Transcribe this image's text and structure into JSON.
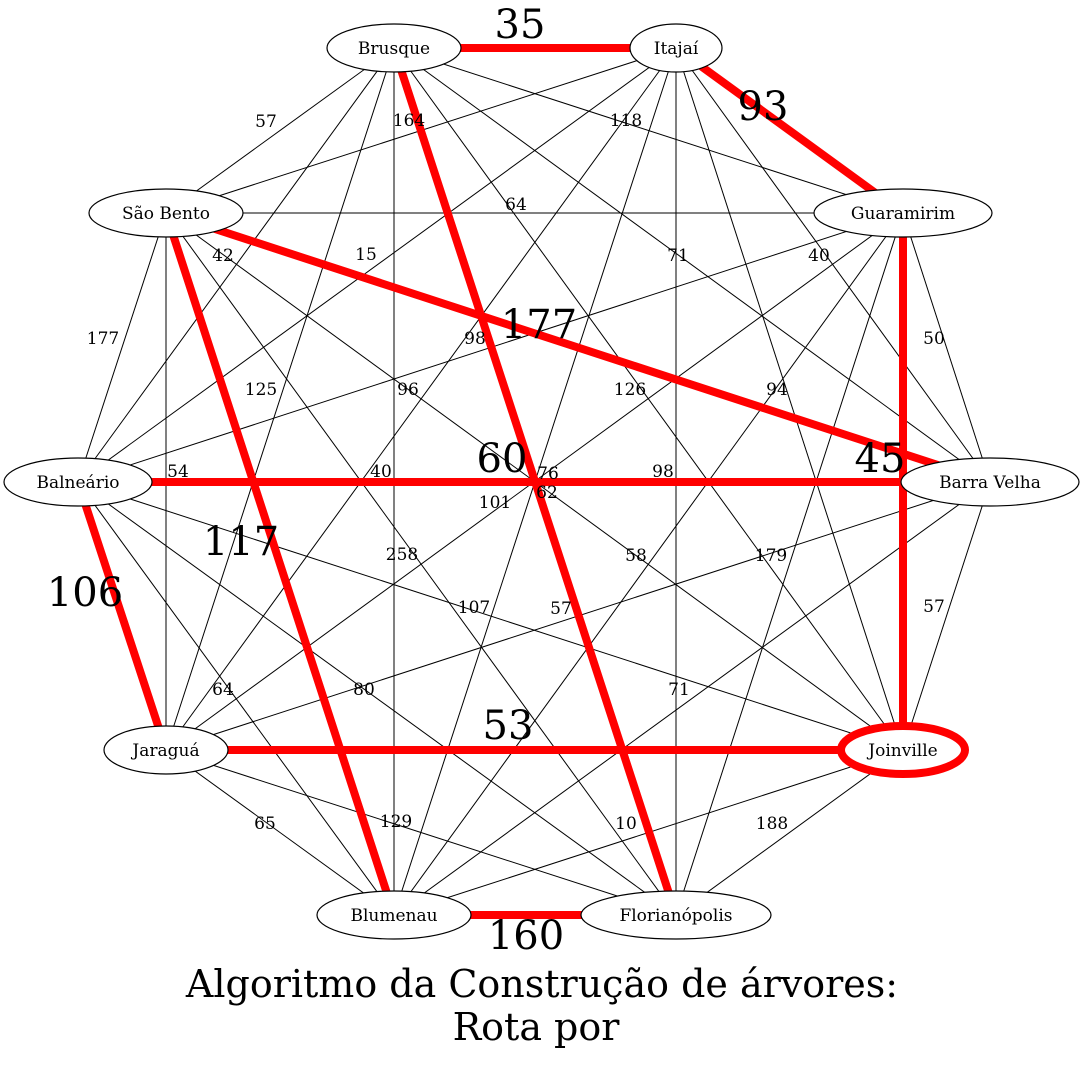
{
  "title": {
    "line1": "Algoritmo da Construção de árvores:",
    "line2": "Rota por"
  },
  "highlight_color": "#ff0000",
  "edge_color": "#000000",
  "nodes": [
    {
      "id": "brusque",
      "label": "Brusque",
      "highlighted": false
    },
    {
      "id": "itajai",
      "label": "Itajaí",
      "highlighted": false
    },
    {
      "id": "sao-bento",
      "label": "São Bento",
      "highlighted": false
    },
    {
      "id": "guaramirim",
      "label": "Guaramirim",
      "highlighted": false
    },
    {
      "id": "balneario",
      "label": "Balneário",
      "highlighted": false
    },
    {
      "id": "barra-velha",
      "label": "Barra Velha",
      "highlighted": false
    },
    {
      "id": "jaragua",
      "label": "Jaraguá",
      "highlighted": false
    },
    {
      "id": "joinville",
      "label": "Joinville",
      "highlighted": true
    },
    {
      "id": "blumenau",
      "label": "Blumenau",
      "highlighted": false
    },
    {
      "id": "florianopolis",
      "label": "Florianópolis",
      "highlighted": false
    }
  ],
  "edges": [
    {
      "from": "brusque",
      "to": "itajai",
      "label": "35",
      "route": true
    },
    {
      "from": "itajai",
      "to": "guaramirim",
      "label": "93",
      "route": true
    },
    {
      "from": "sao-bento",
      "to": "barra-velha",
      "label": "177",
      "route": true
    },
    {
      "from": "brusque",
      "to": "florianopolis",
      "label": "164",
      "route": true
    },
    {
      "from": "sao-bento",
      "to": "blumenau",
      "label": "117",
      "route": true
    },
    {
      "from": "balneario",
      "to": "barra-velha",
      "label": "60",
      "route": true
    },
    {
      "from": "guaramirim",
      "to": "joinville",
      "label": "45",
      "route": true
    },
    {
      "from": "balneario",
      "to": "jaragua",
      "label": "106",
      "route": true
    },
    {
      "from": "jaragua",
      "to": "joinville",
      "label": "53",
      "route": true
    },
    {
      "from": "blumenau",
      "to": "florianopolis",
      "label": "160",
      "route": true
    },
    {
      "from": "brusque",
      "to": "sao-bento",
      "label": "57",
      "route": false
    },
    {
      "from": "brusque",
      "to": "guaramirim",
      "label": "118",
      "route": false
    },
    {
      "from": "brusque",
      "to": "barra-velha",
      "label": "71",
      "route": false
    },
    {
      "from": "brusque",
      "to": "joinville",
      "label": "126",
      "route": false
    },
    {
      "from": "brusque",
      "to": "blumenau",
      "label": "",
      "route": false
    },
    {
      "from": "brusque",
      "to": "jaragua",
      "label": "",
      "route": false
    },
    {
      "from": "brusque",
      "to": "balneario",
      "label": "",
      "route": false
    },
    {
      "from": "itajai",
      "to": "sao-bento",
      "label": "",
      "route": false
    },
    {
      "from": "itajai",
      "to": "balneario",
      "label": "",
      "route": false
    },
    {
      "from": "itajai",
      "to": "barra-velha",
      "label": "40",
      "route": false
    },
    {
      "from": "itajai",
      "to": "joinville",
      "label": "",
      "route": false
    },
    {
      "from": "itajai",
      "to": "jaragua",
      "label": "",
      "route": false
    },
    {
      "from": "itajai",
      "to": "blumenau",
      "label": "",
      "route": false
    },
    {
      "from": "itajai",
      "to": "florianopolis",
      "label": "",
      "route": false
    },
    {
      "from": "sao-bento",
      "to": "guaramirim",
      "label": "64",
      "route": false
    },
    {
      "from": "sao-bento",
      "to": "balneario",
      "label": "177",
      "route": false
    },
    {
      "from": "sao-bento",
      "to": "jaragua",
      "label": "",
      "route": false
    },
    {
      "from": "sao-bento",
      "to": "florianopolis",
      "label": "",
      "route": false
    },
    {
      "from": "sao-bento",
      "to": "joinville",
      "label": "",
      "route": false
    },
    {
      "from": "guaramirim",
      "to": "barra-velha",
      "label": "50",
      "route": false
    },
    {
      "from": "guaramirim",
      "to": "balneario",
      "label": "",
      "route": false
    },
    {
      "from": "guaramirim",
      "to": "jaragua",
      "label": "",
      "route": false
    },
    {
      "from": "guaramirim",
      "to": "blumenau",
      "label": "",
      "route": false
    },
    {
      "from": "guaramirim",
      "to": "florianopolis",
      "label": "",
      "route": false
    },
    {
      "from": "balneario",
      "to": "joinville",
      "label": "",
      "route": false
    },
    {
      "from": "balneario",
      "to": "blumenau",
      "label": "",
      "route": false
    },
    {
      "from": "balneario",
      "to": "florianopolis",
      "label": "",
      "route": false
    },
    {
      "from": "barra-velha",
      "to": "joinville",
      "label": "57",
      "route": false
    },
    {
      "from": "barra-velha",
      "to": "jaragua",
      "label": "",
      "route": false
    },
    {
      "from": "barra-velha",
      "to": "blumenau",
      "label": "",
      "route": false
    },
    {
      "from": "jaragua",
      "to": "blumenau",
      "label": "65",
      "route": false
    },
    {
      "from": "jaragua",
      "to": "florianopolis",
      "label": "129",
      "route": false
    },
    {
      "from": "joinville",
      "to": "blumenau",
      "label": "",
      "route": false
    },
    {
      "from": "joinville",
      "to": "florianopolis",
      "label": "188",
      "route": false
    }
  ],
  "floating_labels": [
    "15",
    "42",
    "98",
    "96",
    "125",
    "54",
    "40",
    "76",
    "62",
    "101",
    "98",
    "94",
    "258",
    "107",
    "57",
    "58",
    "179",
    "64",
    "80",
    "71",
    "10"
  ]
}
